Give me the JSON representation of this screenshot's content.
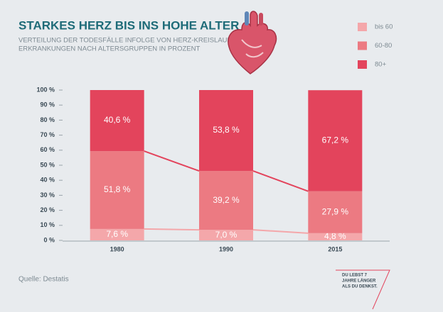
{
  "chart_data": {
    "type": "stacked-bar",
    "title": "STARKES HERZ BIS INS HOHE ALTER",
    "subtitle": [
      "VERTEILUNG DER TODESFÄLLE INFOLGE VON HERZ-KREISLAUF-",
      "ERKRANKUNGEN NACH ALTERSGRUPPEN IN PROZENT"
    ],
    "categories": [
      "1980",
      "1990",
      "2015"
    ],
    "series": [
      {
        "name": "bis 60",
        "color": "#f4a7aa",
        "values": [
          7.6,
          7.0,
          4.8
        ],
        "value_labels": [
          "7,6 %",
          "7,0 %",
          "4,8 %"
        ]
      },
      {
        "name": "60-80",
        "color": "#ec7a82",
        "values": [
          51.8,
          39.2,
          27.9
        ],
        "value_labels": [
          "51,8 %",
          "39,2 %",
          "27,9 %"
        ]
      },
      {
        "name": "80+",
        "color": "#e3445c",
        "values": [
          40.6,
          53.8,
          67.2
        ],
        "value_labels": [
          "40,6 %",
          "53,8 %",
          "67,2 %"
        ]
      }
    ],
    "ylim": [
      0,
      100
    ],
    "yticks": [
      {
        "value": 0,
        "label": "0 %"
      },
      {
        "value": 10,
        "label": "10 %"
      },
      {
        "value": 20,
        "label": "20 %"
      },
      {
        "value": 30,
        "label": "30 %"
      },
      {
        "value": 40,
        "label": "40 %"
      },
      {
        "value": 50,
        "label": "50 %"
      },
      {
        "value": 60,
        "label": "60 %"
      },
      {
        "value": 70,
        "label": "70 %"
      },
      {
        "value": 80,
        "label": "80 %"
      },
      {
        "value": 90,
        "label": "90 %"
      },
      {
        "value": 100,
        "label": "100 %"
      }
    ],
    "grid": false
  },
  "source": "Quelle: Destatis",
  "slogan": [
    "DU LEBST 7",
    "JAHRE LÄNGER",
    "ALS DU DENKST."
  ]
}
